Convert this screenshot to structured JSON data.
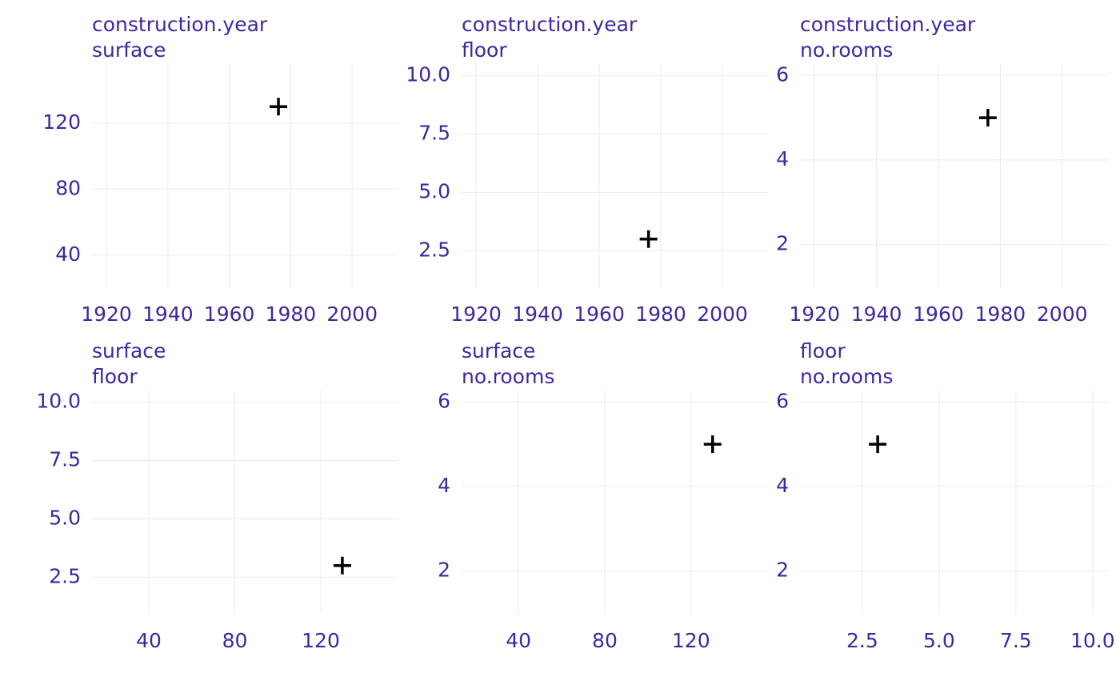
{
  "chart_data": [
    {
      "type": "scatter",
      "title": "construction.year",
      "subtitle": "surface",
      "x": [
        1976
      ],
      "y": [
        130
      ],
      "color": "#000000",
      "grid": true,
      "xlim": [
        1915.3,
        2014.8
      ],
      "xticks": [
        1920,
        1940,
        1960,
        1980,
        2000
      ],
      "ylim": [
        20,
        155.8
      ],
      "yticks": [
        40,
        80,
        120
      ]
    },
    {
      "type": "scatter",
      "title": "construction.year",
      "subtitle": "floor",
      "x": [
        1976
      ],
      "y": [
        3
      ],
      "color": "#000000",
      "grid": true,
      "xlim": [
        1915.3,
        2014.8
      ],
      "xticks": [
        1920,
        1940,
        1960,
        1980,
        2000
      ],
      "ylim": [
        0.9,
        10.5
      ],
      "yticks": [
        2.5,
        {
          "value": 5,
          "label": "5.0"
        },
        7.5,
        {
          "value": 10,
          "label": "10.0"
        }
      ]
    },
    {
      "type": "scatter",
      "title": "construction.year",
      "subtitle": "no.rooms",
      "x": [
        1976
      ],
      "y": [
        5
      ],
      "color": "#000000",
      "grid": true,
      "xlim": [
        1915.3,
        2014.8
      ],
      "xticks": [
        1920,
        1940,
        1960,
        1980,
        2000
      ],
      "ylim": [
        0.97,
        6.27
      ],
      "yticks": [
        2,
        4,
        6
      ]
    },
    {
      "type": "scatter",
      "title": "surface",
      "subtitle": "floor",
      "x": [
        130
      ],
      "y": [
        3
      ],
      "color": "#000000",
      "grid": true,
      "xlim": [
        13.6,
        155.7
      ],
      "xticks": [
        40,
        80,
        120
      ],
      "ylim": [
        0.9,
        10.5
      ],
      "yticks": [
        2.5,
        {
          "value": 5,
          "label": "5.0"
        },
        7.5,
        {
          "value": 10,
          "label": "10.0"
        }
      ]
    },
    {
      "type": "scatter",
      "title": "surface",
      "subtitle": "no.rooms",
      "x": [
        130
      ],
      "y": [
        5
      ],
      "color": "#000000",
      "grid": true,
      "xlim": [
        13.6,
        155.7
      ],
      "xticks": [
        40,
        80,
        120
      ],
      "ylim": [
        0.97,
        6.27
      ],
      "yticks": [
        2,
        4,
        6
      ]
    },
    {
      "type": "scatter",
      "title": "floor",
      "subtitle": "no.rooms",
      "x": [
        3
      ],
      "y": [
        5
      ],
      "color": "#000000",
      "grid": true,
      "xlim": [
        0.47,
        10.5
      ],
      "xticks": [
        2.5,
        {
          "value": 5,
          "label": "5.0"
        },
        7.5,
        {
          "value": 10,
          "label": "10.0"
        }
      ],
      "ylim": [
        0.97,
        6.27
      ],
      "yticks": [
        2,
        4,
        6
      ]
    }
  ]
}
